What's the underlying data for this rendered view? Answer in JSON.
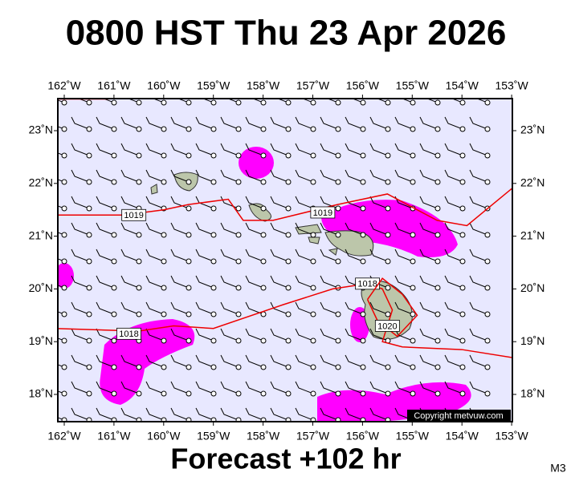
{
  "header": {
    "title": "0800 HST Thu 23 Apr 2026"
  },
  "footer": {
    "forecast": "Forecast +102 hr",
    "model": "M3"
  },
  "map": {
    "copyright": "Copyright metvuw.com",
    "lon_ticks": [
      {
        "value": -162,
        "label": "162˚W"
      },
      {
        "value": -161,
        "label": "161˚W"
      },
      {
        "value": -160,
        "label": "160˚W"
      },
      {
        "value": -159,
        "label": "159˚W"
      },
      {
        "value": -158,
        "label": "158˚W"
      },
      {
        "value": -157,
        "label": "157˚W"
      },
      {
        "value": -156,
        "label": "156˚W"
      },
      {
        "value": -155,
        "label": "155˚W"
      },
      {
        "value": -154,
        "label": "154˚W"
      },
      {
        "value": -153,
        "label": "153˚W"
      }
    ],
    "lat_ticks": [
      {
        "value": 23,
        "label": "23˚N"
      },
      {
        "value": 22,
        "label": "22˚N"
      },
      {
        "value": 21,
        "label": "21˚N"
      },
      {
        "value": 20,
        "label": "20˚N"
      },
      {
        "value": 19,
        "label": "19˚N"
      },
      {
        "value": 18,
        "label": "18˚N"
      }
    ],
    "isobars": [
      {
        "value": 1019,
        "points": [
          [
            -162.2,
            21.4
          ],
          [
            -160.8,
            21.4
          ],
          [
            -160,
            21.5
          ],
          [
            -159.5,
            21.6
          ],
          [
            -158.7,
            21.7
          ],
          [
            -158.4,
            21.3
          ],
          [
            -157.8,
            21.3
          ],
          [
            -156.5,
            21.6
          ],
          [
            -155.5,
            21.8
          ],
          [
            -154.5,
            21.3
          ],
          [
            -153.9,
            21.2
          ],
          [
            -153,
            21.9
          ]
        ],
        "labels_at": [
          [
            -160.6,
            21.4
          ],
          [
            -156.8,
            21.45
          ]
        ]
      },
      {
        "value": 1018,
        "points": [
          [
            -162.2,
            19.25
          ],
          [
            -160.5,
            19.2
          ],
          [
            -159.8,
            19.3
          ],
          [
            -159,
            19.25
          ],
          [
            -157.6,
            19.7
          ],
          [
            -156.6,
            20.0
          ],
          [
            -155.9,
            20.1
          ],
          [
            -155.6,
            20.0
          ],
          [
            -155.4,
            19.6
          ],
          [
            -155.6,
            19.0
          ],
          [
            -155.2,
            18.9
          ],
          [
            -154,
            18.85
          ],
          [
            -153,
            18.7
          ]
        ],
        "labels_at": [
          [
            -160.7,
            19.15
          ],
          [
            -155.9,
            20.1
          ]
        ]
      },
      {
        "value": 1020,
        "points": [
          [
            -155.9,
            19.8
          ],
          [
            -155.6,
            20.2
          ],
          [
            -155.2,
            19.9
          ],
          [
            -154.9,
            19.5
          ],
          [
            -155.3,
            19.1
          ],
          [
            -155.7,
            19.4
          ],
          [
            -155.9,
            19.8
          ]
        ],
        "labels_at": [
          [
            -155.5,
            19.3
          ]
        ]
      },
      {
        "value": 1019,
        "points": [
          [
            -162.2,
            23.6
          ],
          [
            -161.2,
            23.6
          ],
          [
            -160.5,
            23.62
          ]
        ],
        "labels_at": []
      }
    ]
  }
}
